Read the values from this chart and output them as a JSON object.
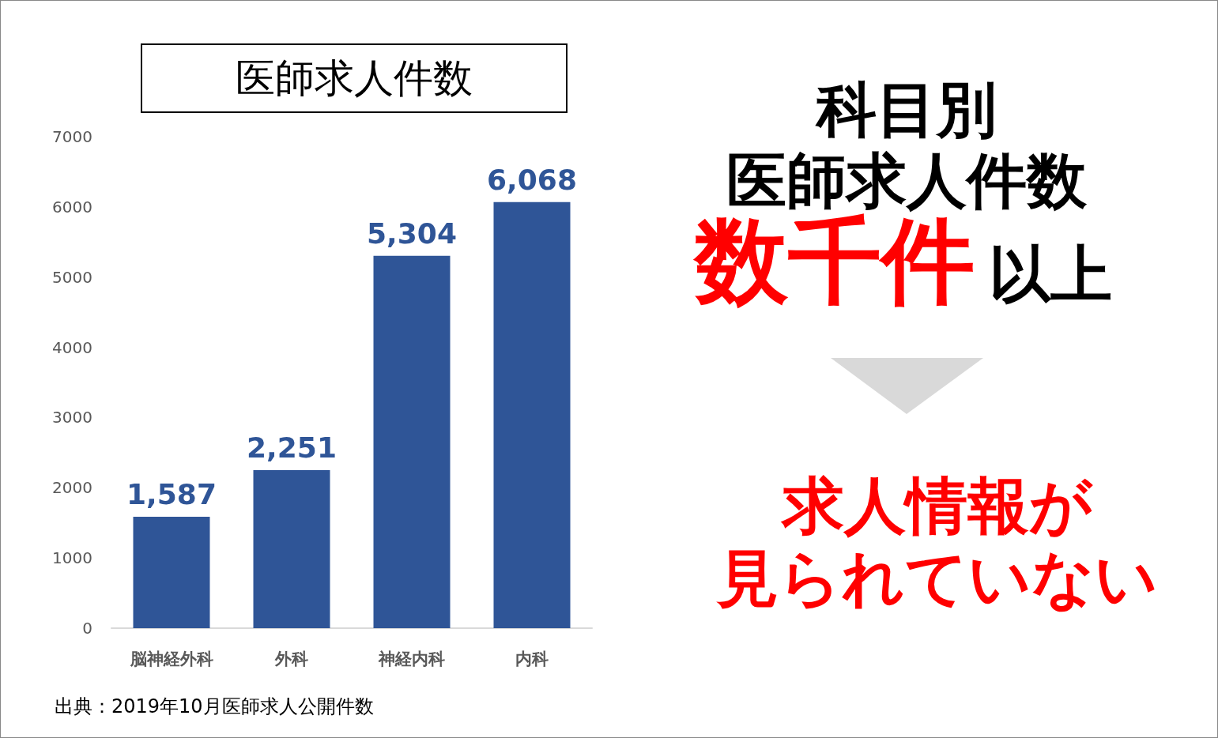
{
  "chart_data": {
    "type": "bar",
    "title": "医師求人件数",
    "categories": [
      "脳神経外科",
      "外科",
      "神経内科",
      "内科"
    ],
    "values": [
      1587,
      2251,
      5304,
      6068
    ],
    "value_labels": [
      "1,587",
      "2,251",
      "5,304",
      "6,068"
    ],
    "color": "#2f5597",
    "ylim": [
      0,
      7000
    ],
    "yticks": [
      0,
      1000,
      2000,
      3000,
      4000,
      5000,
      6000,
      7000
    ],
    "annotations": [
      "科目別",
      "医師求人件数",
      "数千件",
      "以上",
      "求人情報が",
      "見られていない",
      "出典：2019年10月医師求人公開件数"
    ]
  }
}
